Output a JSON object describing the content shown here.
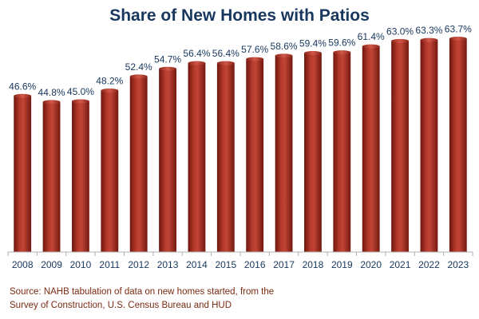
{
  "title": "Share of New Homes with Patios",
  "source": [
    "Source: NAHB tabulation of data on new homes started, from the",
    "Survey of Construction, U.S. Census Bureau and HUD"
  ],
  "colors": {
    "bar": "#a52a1e",
    "bar_dark": "#6e160e",
    "bar_light": "#c8483a",
    "text": "#17375e",
    "source_text": "#7a2a12",
    "axis": "#b0b0b0"
  },
  "chart_data": {
    "type": "bar",
    "title": "Share of New Homes with Patios",
    "xlabel": "",
    "ylabel": "",
    "ylim": [
      0,
      70
    ],
    "grid": false,
    "categories": [
      "2008",
      "2009",
      "2010",
      "2011",
      "2012",
      "2013",
      "2014",
      "2015",
      "2016",
      "2017",
      "2018",
      "2019",
      "2020",
      "2021",
      "2022",
      "2023"
    ],
    "values": [
      46.6,
      44.8,
      45.0,
      48.2,
      52.4,
      54.7,
      56.4,
      56.4,
      57.6,
      58.6,
      59.4,
      59.6,
      61.4,
      63.0,
      63.3,
      63.7
    ],
    "data_labels": [
      "46.6%",
      "44.8%",
      "45.0%",
      "48.2%",
      "52.4%",
      "54.7%",
      "56.4%",
      "56.4%",
      "57.6%",
      "58.6%",
      "59.4%",
      "59.6%",
      "61.4%",
      "63.0%",
      "63.3%",
      "63.7%"
    ]
  }
}
